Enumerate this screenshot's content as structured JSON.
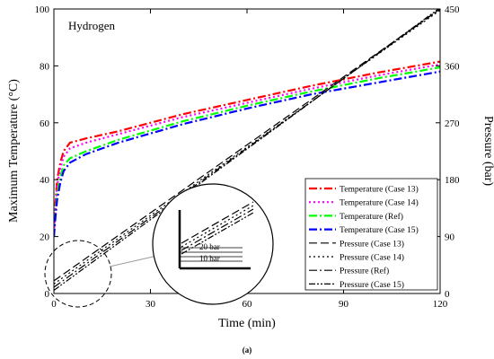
{
  "chart_data": {
    "type": "line",
    "panel_label": "Hydrogen",
    "caption": "(a)",
    "xlabel": "Time (min)",
    "ylabel_left": "Maximum Temperature (°C)",
    "ylabel_right": "Pressure (bar)",
    "xlim": [
      0,
      120
    ],
    "ylim_left": [
      0,
      100
    ],
    "ylim_right": [
      0,
      450
    ],
    "xticks": [
      0,
      30,
      60,
      90,
      120
    ],
    "yticks_left": [
      0,
      20,
      40,
      60,
      80,
      100
    ],
    "yticks_right": [
      0,
      90,
      180,
      270,
      360,
      450
    ],
    "grid": false,
    "legend_position": "bottom-right",
    "series": [
      {
        "name": "Temperature (Case 13)",
        "axis": "left",
        "color": "#ff0000",
        "dash": "dashdot",
        "x": [
          0,
          0.5,
          1,
          2,
          3,
          5,
          10,
          20,
          40,
          60,
          80,
          100,
          120
        ],
        "y": [
          20,
          32,
          40,
          46,
          50,
          53,
          54.5,
          57,
          63,
          68,
          73,
          77.5,
          81.5
        ]
      },
      {
        "name": "Temperature (Case 14)",
        "axis": "left",
        "color": "#ff00ff",
        "dash": "dot",
        "x": [
          0,
          0.5,
          1,
          2,
          3,
          5,
          10,
          20,
          40,
          60,
          80,
          100,
          120
        ],
        "y": [
          20,
          30,
          38,
          44,
          48,
          51,
          53,
          56,
          62,
          67,
          72,
          76.5,
          80.5
        ]
      },
      {
        "name": "Temperature (Ref)",
        "axis": "left",
        "color": "#00ff00",
        "dash": "dashdot",
        "x": [
          0,
          0.5,
          1,
          2,
          3,
          5,
          10,
          20,
          40,
          60,
          80,
          100,
          120
        ],
        "y": [
          20,
          28,
          35,
          41,
          45,
          47.5,
          50,
          54,
          60.5,
          66,
          71,
          75.5,
          79.5
        ]
      },
      {
        "name": "Temperature (Case 15)",
        "axis": "left",
        "color": "#0000ff",
        "dash": "dashdot",
        "x": [
          0,
          0.5,
          1,
          2,
          3,
          5,
          10,
          20,
          40,
          60,
          80,
          100,
          120
        ],
        "y": [
          20,
          27,
          33,
          39,
          43,
          46,
          49,
          53,
          59.5,
          65,
          70,
          74,
          78
        ]
      },
      {
        "name": "Pressure (Case 13)",
        "axis": "right",
        "color": "#000000",
        "dash": "dash",
        "x": [
          0,
          120
        ],
        "y": [
          20,
          450
        ]
      },
      {
        "name": "Pressure (Case 14)",
        "axis": "right",
        "color": "#000000",
        "dash": "dot",
        "x": [
          0,
          120
        ],
        "y": [
          15,
          448
        ]
      },
      {
        "name": "Pressure (Ref)",
        "axis": "right",
        "color": "#000000",
        "dash": "dashdot",
        "x": [
          0,
          120
        ],
        "y": [
          10,
          450
        ]
      },
      {
        "name": "Pressure (Case 15)",
        "axis": "right",
        "color": "#000000",
        "dash": "dashdotdot",
        "x": [
          0,
          120
        ],
        "y": [
          5,
          452
        ]
      }
    ],
    "inset_annotations": [
      "20 bar",
      "10 bar"
    ]
  }
}
